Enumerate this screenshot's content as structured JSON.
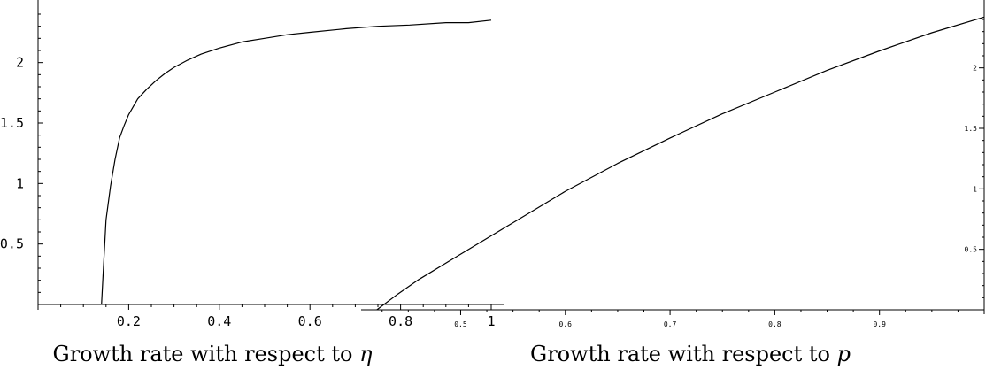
{
  "chart_data": [
    {
      "type": "line",
      "title": "",
      "caption": "Growth rate with respect to ",
      "caption_variable": "η",
      "xlabel": "",
      "ylabel": "",
      "xlim": [
        0,
        1
      ],
      "ylim": [
        0,
        2.4
      ],
      "x_ticks": [
        {
          "value": 0.2,
          "label": "0.2"
        },
        {
          "value": 0.4,
          "label": "0.4"
        },
        {
          "value": 0.6,
          "label": "0.6"
        },
        {
          "value": 0.8,
          "label": "0.8"
        },
        {
          "value": 1.0,
          "label": "1"
        }
      ],
      "y_ticks": [
        {
          "value": 0.5,
          "label": "0.5"
        },
        {
          "value": 1.0,
          "label": "1"
        },
        {
          "value": 1.5,
          "label": "1.5"
        },
        {
          "value": 2.0,
          "label": "2"
        }
      ],
      "y_axis_position": "left",
      "grid": false,
      "series": [
        {
          "x": [
            0.14,
            0.145,
            0.15,
            0.16,
            0.17,
            0.18,
            0.19,
            0.2,
            0.22,
            0.24,
            0.26,
            0.28,
            0.3,
            0.33,
            0.36,
            0.4,
            0.45,
            0.5,
            0.55,
            0.6,
            0.68,
            0.75,
            0.82,
            0.9,
            0.95,
            1.0
          ],
          "y": [
            0.0,
            0.35,
            0.7,
            0.98,
            1.2,
            1.38,
            1.48,
            1.57,
            1.7,
            1.78,
            1.85,
            1.91,
            1.96,
            2.02,
            2.07,
            2.12,
            2.17,
            2.2,
            2.23,
            2.25,
            2.28,
            2.3,
            2.31,
            2.33,
            2.33,
            2.35
          ]
        }
      ]
    },
    {
      "type": "line",
      "title": "",
      "caption": "Growth rate with respect to ",
      "caption_variable": "p",
      "xlabel": "",
      "ylabel": "",
      "xlim": [
        0.41,
        1.0
      ],
      "ylim": [
        0,
        2.4
      ],
      "x_ticks": [
        {
          "value": 0.5,
          "label": "0.5"
        },
        {
          "value": 0.6,
          "label": "0.6"
        },
        {
          "value": 0.7,
          "label": "0.7"
        },
        {
          "value": 0.8,
          "label": "0.8"
        },
        {
          "value": 0.9,
          "label": "0.9"
        }
      ],
      "y_ticks": [
        {
          "value": 0.5,
          "label": "0.5"
        },
        {
          "value": 1.0,
          "label": "1"
        },
        {
          "value": 1.5,
          "label": "1.5"
        },
        {
          "value": 2.0,
          "label": "2"
        }
      ],
      "y_axis_position": "right",
      "grid": false,
      "series": [
        {
          "x": [
            0.42,
            0.44,
            0.46,
            0.5,
            0.55,
            0.6,
            0.65,
            0.7,
            0.75,
            0.8,
            0.85,
            0.9,
            0.95,
            1.0
          ],
          "y": [
            0.0,
            0.13,
            0.25,
            0.46,
            0.72,
            0.98,
            1.21,
            1.42,
            1.62,
            1.8,
            1.98,
            2.14,
            2.29,
            2.42
          ]
        }
      ]
    }
  ]
}
